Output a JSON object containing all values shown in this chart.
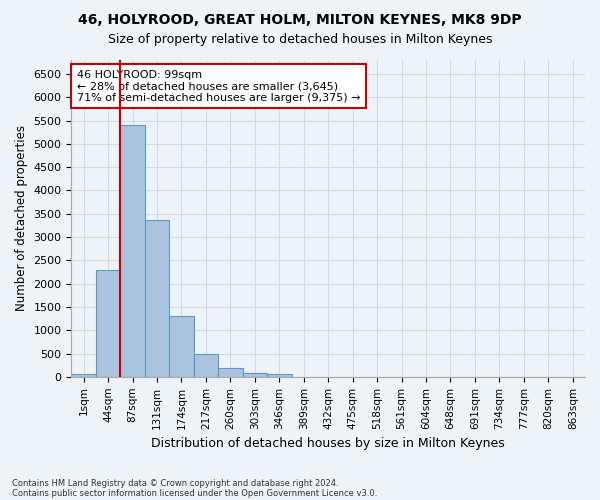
{
  "title1": "46, HOLYROOD, GREAT HOLM, MILTON KEYNES, MK8 9DP",
  "title2": "Size of property relative to detached houses in Milton Keynes",
  "xlabel": "Distribution of detached houses by size in Milton Keynes",
  "ylabel": "Number of detached properties",
  "footnote1": "Contains HM Land Registry data © Crown copyright and database right 2024.",
  "footnote2": "Contains public sector information licensed under the Open Government Licence v3.0.",
  "bin_labels": [
    "1sqm",
    "44sqm",
    "87sqm",
    "131sqm",
    "174sqm",
    "217sqm",
    "260sqm",
    "303sqm",
    "346sqm",
    "389sqm",
    "432sqm",
    "475sqm",
    "518sqm",
    "561sqm",
    "604sqm",
    "648sqm",
    "691sqm",
    "734sqm",
    "777sqm",
    "820sqm",
    "863sqm"
  ],
  "bar_values": [
    70,
    2300,
    5400,
    3370,
    1310,
    480,
    190,
    80,
    50,
    0,
    0,
    0,
    0,
    0,
    0,
    0,
    0,
    0,
    0,
    0,
    0
  ],
  "bar_color": "#aac4e0",
  "bar_edge_color": "#5a9abf",
  "grid_color": "#d0dce8",
  "background_color": "#eef3f8",
  "vline_x": 1.5,
  "vline_color": "#cc0000",
  "annotation_text": "46 HOLYROOD: 99sqm\n← 28% of detached houses are smaller (3,645)\n71% of semi-detached houses are larger (9,375) →",
  "annotation_box_color": "#ffffff",
  "annotation_box_edge": "#cc0000",
  "ylim": [
    0,
    6800
  ],
  "yticks": [
    0,
    500,
    1000,
    1500,
    2000,
    2500,
    3000,
    3500,
    4000,
    4500,
    5000,
    5500,
    6000,
    6500
  ]
}
